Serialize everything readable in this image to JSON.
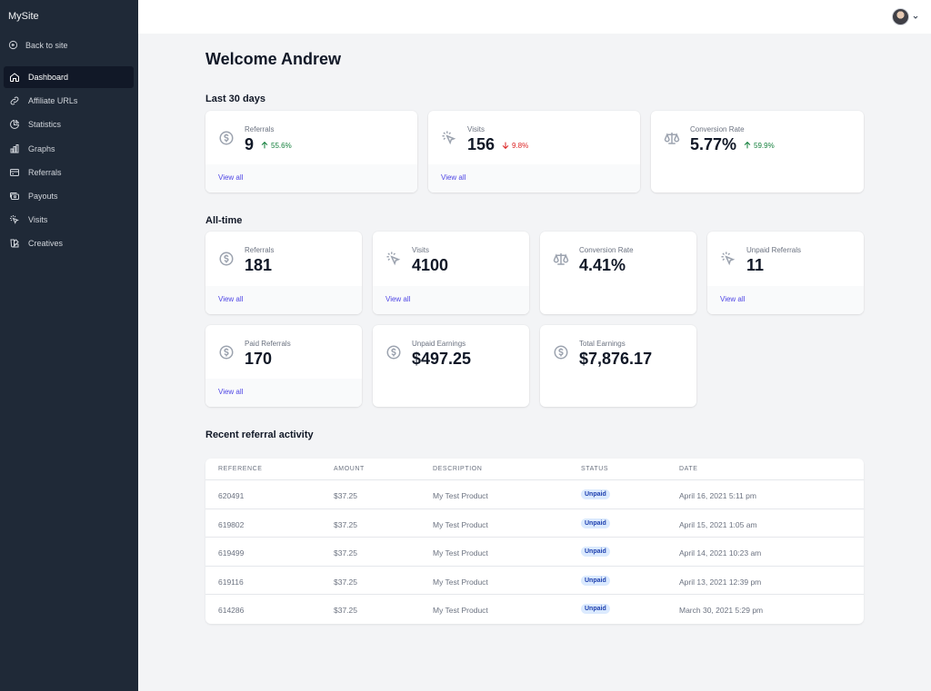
{
  "sidebar": {
    "brand": "MySite",
    "back": "Back to site",
    "items": [
      {
        "label": "Dashboard",
        "icon": "home-icon",
        "active": true
      },
      {
        "label": "Affiliate URLs",
        "icon": "link-icon"
      },
      {
        "label": "Statistics",
        "icon": "pie-chart-icon"
      },
      {
        "label": "Graphs",
        "icon": "bar-chart-icon"
      },
      {
        "label": "Referrals",
        "icon": "credit-card-icon"
      },
      {
        "label": "Payouts",
        "icon": "cash-icon"
      },
      {
        "label": "Visits",
        "icon": "cursor-click-icon"
      },
      {
        "label": "Creatives",
        "icon": "color-swatch-icon"
      }
    ]
  },
  "header": {
    "avatar": "user-avatar",
    "menu_icon": "chevron-down-icon"
  },
  "main": {
    "title": "Welcome Andrew",
    "last30": {
      "title": "Last 30 days",
      "cards": [
        {
          "label": "Referrals",
          "value": "9",
          "delta": "55.6%",
          "trend": "up",
          "icon": "currency-dollar-icon",
          "link": "View all"
        },
        {
          "label": "Visits",
          "value": "156",
          "delta": "9.8%",
          "trend": "down",
          "icon": "cursor-click-icon",
          "link": "View all"
        },
        {
          "label": "Conversion Rate",
          "value": "5.77%",
          "delta": "59.9%",
          "trend": "up",
          "icon": "scale-icon"
        }
      ]
    },
    "alltime": {
      "title": "All-time",
      "cards": [
        {
          "label": "Referrals",
          "value": "181",
          "icon": "currency-dollar-icon",
          "link": "View all"
        },
        {
          "label": "Visits",
          "value": "4100",
          "icon": "cursor-click-icon",
          "link": "View all"
        },
        {
          "label": "Conversion Rate",
          "value": "4.41%",
          "icon": "scale-icon"
        },
        {
          "label": "Unpaid Referrals",
          "value": "11",
          "icon": "cursor-click-icon",
          "link": "View all"
        },
        {
          "label": "Paid Referrals",
          "value": "170",
          "icon": "currency-dollar-icon",
          "link": "View all"
        },
        {
          "label": "Unpaid Earnings",
          "value": "$497.25",
          "icon": "currency-dollar-icon"
        },
        {
          "label": "Total Earnings",
          "value": "$7,876.17",
          "icon": "currency-dollar-icon"
        }
      ]
    },
    "recent": {
      "title": "Recent referral activity",
      "columns": [
        "REFERENCE",
        "AMOUNT",
        "DESCRIPTION",
        "STATUS",
        "DATE"
      ],
      "rows": [
        {
          "reference": "620491",
          "amount": "$37.25",
          "description": "My Test Product",
          "status": "Unpaid",
          "date": "April 16, 2021 5:11 pm"
        },
        {
          "reference": "619802",
          "amount": "$37.25",
          "description": "My Test Product",
          "status": "Unpaid",
          "date": "April 15, 2021 1:05 am"
        },
        {
          "reference": "619499",
          "amount": "$37.25",
          "description": "My Test Product",
          "status": "Unpaid",
          "date": "April 14, 2021 10:23 am"
        },
        {
          "reference": "619116",
          "amount": "$37.25",
          "description": "My Test Product",
          "status": "Unpaid",
          "date": "April 13, 2021 12:39 pm"
        },
        {
          "reference": "614286",
          "amount": "$37.25",
          "description": "My Test Product",
          "status": "Unpaid",
          "date": "March 30, 2021 5:29 pm"
        }
      ]
    }
  },
  "colors": {
    "sidebar_bg": "#1f2937",
    "active_bg": "#111827",
    "link": "#4f46e5",
    "up": "#15803d",
    "down": "#dc2626",
    "badge_bg": "#dbeafe",
    "badge_text": "#1e40af"
  }
}
